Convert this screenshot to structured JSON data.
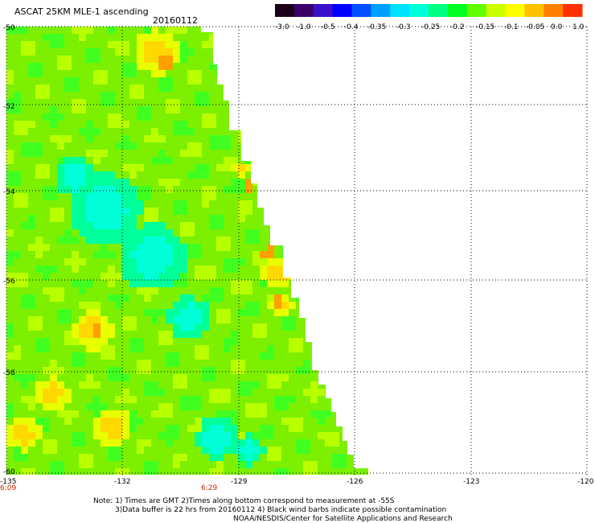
{
  "header": {
    "title": "ASCAT 25KM MLE-1 ascending",
    "date": "20160112"
  },
  "colorbar": {
    "labels": [
      "-3.0",
      "-1.0",
      "-0.5",
      "-0.4",
      "-0.35",
      "-0.3",
      "-0.25",
      "-0.2",
      "-0.15",
      "-0.1",
      "-0.05",
      "0.0",
      "1.0"
    ],
    "colors": [
      "#1a0018",
      "#3c0068",
      "#3a10c8",
      "#0000ff",
      "#0050ff",
      "#00a0ff",
      "#00e0ff",
      "#00ffd8",
      "#00ff80",
      "#00ff20",
      "#60ff00",
      "#ccff00",
      "#ffff00",
      "#ffc000",
      "#ff8000",
      "#ff3000"
    ]
  },
  "map": {
    "lat_labels": [
      "-50",
      "-52",
      "-54",
      "-56",
      "-58",
      "-60"
    ],
    "lon_labels": [
      "-135",
      "-132",
      "-129",
      "-126",
      "-123",
      "-120"
    ],
    "lat_range": [
      -60,
      -50
    ],
    "lon_range": [
      -135,
      -120
    ],
    "time_labels": [
      {
        "text": "6:09",
        "lon": -135
      },
      {
        "text": "6:29",
        "lon": -130
      }
    ],
    "time_color": "#cc2200"
  },
  "notes": {
    "line1": "Note: 1) Times are GMT 2)Times along bottom correspond to measurement at -55S",
    "line2": "3)Data buffer is 22 hrs from 20160112 4) Black wind barbs indicate possible contamination",
    "line3": "NOAA/NESDIS/Center for Satellite Applications and Research"
  }
}
